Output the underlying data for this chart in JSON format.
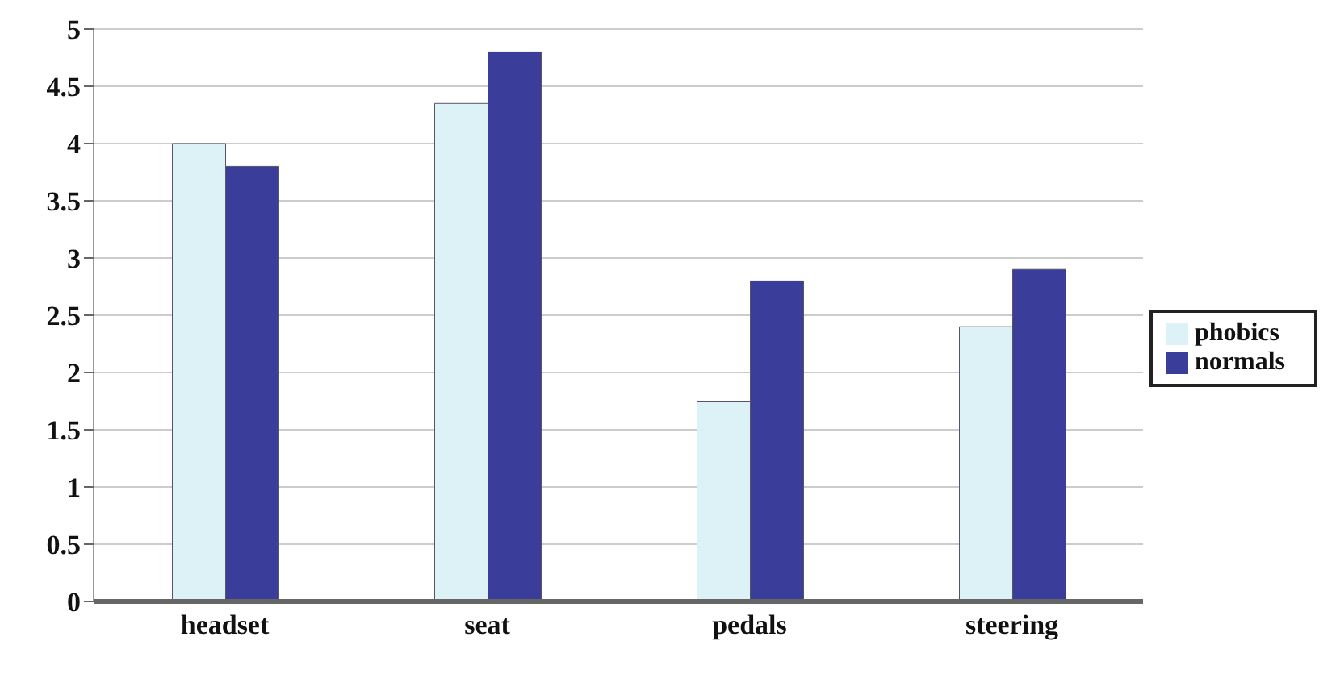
{
  "chart_data": {
    "type": "bar",
    "categories": [
      "headset",
      "seat",
      "pedals",
      "steering"
    ],
    "series": [
      {
        "name": "phobics",
        "color": "#ddf2f6",
        "values": [
          4.0,
          4.35,
          1.75,
          2.4
        ]
      },
      {
        "name": "normals",
        "color": "#3a3d9a",
        "values": [
          3.8,
          4.8,
          2.8,
          2.9
        ]
      }
    ],
    "ylim": [
      0,
      5
    ],
    "yticks": [
      0,
      0.5,
      1,
      1.5,
      2,
      2.5,
      3,
      3.5,
      4,
      4.5,
      5
    ],
    "grid": "y",
    "legend": "right"
  }
}
